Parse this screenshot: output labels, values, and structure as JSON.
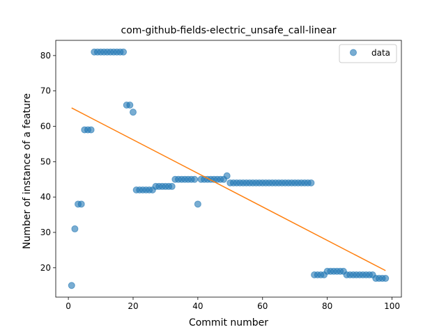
{
  "chart_data": {
    "type": "scatter",
    "title": "com-github-fields-electric_unsafe_call-linear",
    "xlabel": "Commit number",
    "ylabel": "Number of instance of a feature",
    "xlim": [
      -3.9,
      102.9
    ],
    "ylim": [
      11.7,
      84.3
    ],
    "xticks": [
      0,
      20,
      40,
      60,
      80,
      100
    ],
    "yticks": [
      20,
      30,
      40,
      50,
      60,
      70,
      80
    ],
    "grid": false,
    "legend_position": "top-right",
    "colors": {
      "data": "#1f77b4",
      "fit": "#ff7f0e"
    },
    "series": [
      {
        "name": "data",
        "kind": "scatter",
        "points": [
          [
            1,
            15
          ],
          [
            2,
            31
          ],
          [
            3,
            38
          ],
          [
            4,
            38
          ],
          [
            5,
            59
          ],
          [
            6,
            59
          ],
          [
            7,
            59
          ],
          [
            8,
            81
          ],
          [
            9,
            81
          ],
          [
            10,
            81
          ],
          [
            11,
            81
          ],
          [
            12,
            81
          ],
          [
            13,
            81
          ],
          [
            14,
            81
          ],
          [
            15,
            81
          ],
          [
            16,
            81
          ],
          [
            17,
            81
          ],
          [
            18,
            66
          ],
          [
            19,
            66
          ],
          [
            20,
            64
          ],
          [
            21,
            42
          ],
          [
            22,
            42
          ],
          [
            23,
            42
          ],
          [
            24,
            42
          ],
          [
            25,
            42
          ],
          [
            26,
            42
          ],
          [
            27,
            43
          ],
          [
            28,
            43
          ],
          [
            29,
            43
          ],
          [
            30,
            43
          ],
          [
            31,
            43
          ],
          [
            32,
            43
          ],
          [
            33,
            45
          ],
          [
            34,
            45
          ],
          [
            35,
            45
          ],
          [
            36,
            45
          ],
          [
            37,
            45
          ],
          [
            38,
            45
          ],
          [
            39,
            45
          ],
          [
            40,
            38
          ],
          [
            41,
            45
          ],
          [
            42,
            45
          ],
          [
            43,
            45
          ],
          [
            44,
            45
          ],
          [
            45,
            45
          ],
          [
            46,
            45
          ],
          [
            47,
            45
          ],
          [
            48,
            45
          ],
          [
            49,
            46
          ],
          [
            50,
            44
          ],
          [
            51,
            44
          ],
          [
            52,
            44
          ],
          [
            53,
            44
          ],
          [
            54,
            44
          ],
          [
            55,
            44
          ],
          [
            56,
            44
          ],
          [
            57,
            44
          ],
          [
            58,
            44
          ],
          [
            59,
            44
          ],
          [
            60,
            44
          ],
          [
            61,
            44
          ],
          [
            62,
            44
          ],
          [
            63,
            44
          ],
          [
            64,
            44
          ],
          [
            65,
            44
          ],
          [
            66,
            44
          ],
          [
            67,
            44
          ],
          [
            68,
            44
          ],
          [
            69,
            44
          ],
          [
            70,
            44
          ],
          [
            71,
            44
          ],
          [
            72,
            44
          ],
          [
            73,
            44
          ],
          [
            74,
            44
          ],
          [
            75,
            44
          ],
          [
            76,
            18
          ],
          [
            77,
            18
          ],
          [
            78,
            18
          ],
          [
            79,
            18
          ],
          [
            80,
            19
          ],
          [
            81,
            19
          ],
          [
            82,
            19
          ],
          [
            83,
            19
          ],
          [
            84,
            19
          ],
          [
            85,
            19
          ],
          [
            86,
            18
          ],
          [
            87,
            18
          ],
          [
            88,
            18
          ],
          [
            89,
            18
          ],
          [
            90,
            18
          ],
          [
            91,
            18
          ],
          [
            92,
            18
          ],
          [
            93,
            18
          ],
          [
            94,
            18
          ],
          [
            95,
            17
          ],
          [
            96,
            17
          ],
          [
            97,
            17
          ],
          [
            98,
            17
          ]
        ]
      },
      {
        "name": "",
        "kind": "line",
        "points": [
          [
            1,
            65.2
          ],
          [
            98,
            19.2
          ]
        ]
      }
    ]
  }
}
